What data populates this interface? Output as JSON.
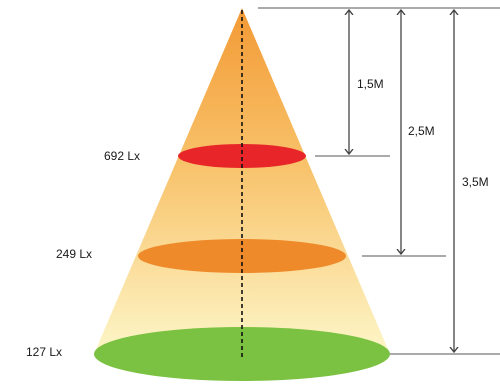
{
  "levels": [
    {
      "lux": "692 Lx",
      "distance": "1,5M",
      "color": "#e8262a"
    },
    {
      "lux": "249 Lx",
      "distance": "2,5M",
      "color": "#ef8a2b"
    },
    {
      "lux": "127 Lx",
      "distance": "3,5M",
      "color": "#7cc242"
    }
  ],
  "colors": {
    "cone_top": "#f39a35",
    "cone_bottom": "#fdf6c8",
    "guide_lines": "#555555",
    "axis": "#111111"
  }
}
